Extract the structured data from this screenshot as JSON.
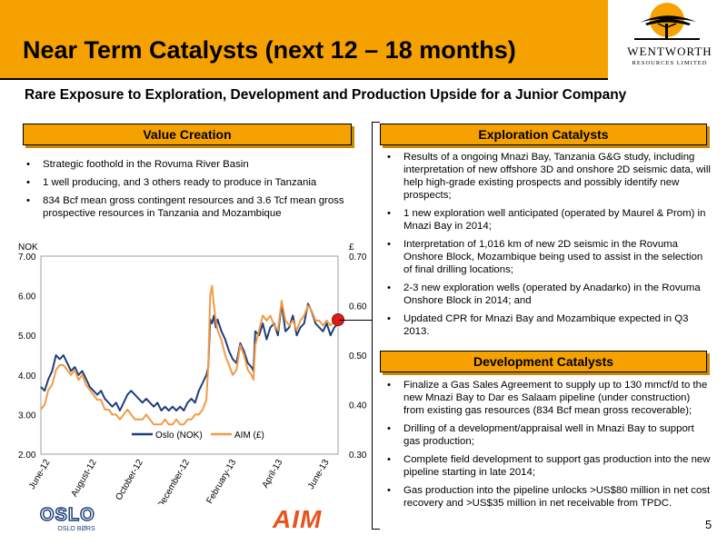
{
  "header": {
    "title": "Near Term Catalysts (next 12 – 18 months)",
    "logo_name": "WENTWORTH",
    "logo_sub": "RESOURCES LIMITED"
  },
  "subtitle": "Rare Exposure to Exploration, Development and Production Upside for a Junior Company",
  "value_creation": {
    "heading": "Value Creation",
    "items": [
      "Strategic foothold in the Rovuma River Basin",
      "1 well producing, and 3 others ready to produce in Tanzania",
      "834 Bcf mean gross contingent resources and 3.6 Tcf mean gross prospective resources in Tanzania and Mozambique"
    ]
  },
  "exploration": {
    "heading": "Exploration Catalysts",
    "items": [
      "Results of a ongoing Mnazi Bay, Tanzania G&G study, including interpretation of new offshore 3D and onshore 2D seismic data, will help high-grade existing prospects and possibly identify new prospects;",
      "1 new exploration well anticipated (operated by Maurel & Prom) in Mnazi Bay in 2014;",
      "Interpretation of 1,016 km of new 2D seismic in the Rovuma Onshore Block, Mozambique being used to assist in the selection of final drilling locations;",
      "2-3 new exploration wells (operated by Anadarko) in the Rovuma Onshore Block in 2014; and",
      "Updated CPR for Mnazi Bay and Mozambique expected in Q3 2013."
    ]
  },
  "development": {
    "heading": "Development Catalysts",
    "items": [
      "Finalize a Gas Sales Agreement to supply up to 130 mmcf/d to the new Mnazi Bay to Dar es Salaam pipeline (under construction) from existing gas resources (834 Bcf mean gross recoverable);",
      "Drilling of a development/appraisal well in Mnazi Bay to support gas production;",
      "Complete field development to support gas production into the new pipeline starting in late 2014;",
      "Gas production into the pipeline unlocks >US$80 million in net cost recovery and >US$35 million in net receivable from TPDC."
    ]
  },
  "page_number": "5",
  "logos": {
    "oslo": "OSLO",
    "oslo_sub": "OSLO BØRS",
    "aim": "AIM"
  },
  "chart_data": {
    "type": "line",
    "left_unit": "NOK",
    "right_unit": "£",
    "left_ticks": [
      "7.00",
      "6.00",
      "5.00",
      "4.00",
      "3.00",
      "2.00"
    ],
    "left_ylim": [
      2.0,
      7.0
    ],
    "right_ticks": [
      "0.70",
      "0.60",
      "0.50",
      "0.40",
      "0.30"
    ],
    "right_ylim": [
      0.3,
      0.7
    ],
    "x_ticks": [
      "June-12",
      "August-12",
      "October-12",
      "December-12",
      "February-13",
      "April-13",
      "June-13"
    ],
    "grid": false,
    "legend_position": "bottom-center",
    "colors": {
      "oslo": "#1f3f7a",
      "aim": "#f39a45",
      "marker": "#e01b1b"
    },
    "series": [
      {
        "name": "Oslo (NOK)",
        "axis": "left",
        "points": [
          [
            0,
            3.7
          ],
          [
            2,
            3.6
          ],
          [
            4,
            3.9
          ],
          [
            6,
            4.1
          ],
          [
            8,
            4.5
          ],
          [
            10,
            4.4
          ],
          [
            12,
            4.5
          ],
          [
            14,
            4.3
          ],
          [
            16,
            4.1
          ],
          [
            18,
            4.2
          ],
          [
            20,
            4.0
          ],
          [
            22,
            4.1
          ],
          [
            24,
            3.9
          ],
          [
            26,
            3.7
          ],
          [
            28,
            3.6
          ],
          [
            30,
            3.5
          ],
          [
            32,
            3.6
          ],
          [
            34,
            3.4
          ],
          [
            36,
            3.3
          ],
          [
            38,
            3.2
          ],
          [
            40,
            3.3
          ],
          [
            42,
            3.1
          ],
          [
            44,
            3.3
          ],
          [
            46,
            3.5
          ],
          [
            48,
            3.6
          ],
          [
            50,
            3.5
          ],
          [
            52,
            3.4
          ],
          [
            54,
            3.3
          ],
          [
            56,
            3.4
          ],
          [
            58,
            3.3
          ],
          [
            60,
            3.2
          ],
          [
            62,
            3.3
          ],
          [
            64,
            3.1
          ],
          [
            66,
            3.2
          ],
          [
            68,
            3.1
          ],
          [
            70,
            3.2
          ],
          [
            72,
            3.1
          ],
          [
            74,
            3.2
          ],
          [
            76,
            3.1
          ],
          [
            78,
            3.3
          ],
          [
            80,
            3.4
          ],
          [
            82,
            3.3
          ],
          [
            84,
            3.6
          ],
          [
            86,
            3.8
          ],
          [
            88,
            4.0
          ],
          [
            89,
            4.2
          ],
          [
            90,
            5.4
          ],
          [
            91,
            5.3
          ],
          [
            92,
            5.5
          ],
          [
            93,
            5.2
          ],
          [
            94,
            5.4
          ],
          [
            96,
            5.1
          ],
          [
            98,
            4.9
          ],
          [
            100,
            4.6
          ],
          [
            102,
            4.4
          ],
          [
            104,
            4.3
          ],
          [
            106,
            4.8
          ],
          [
            108,
            4.6
          ],
          [
            110,
            4.3
          ],
          [
            112,
            4.2
          ],
          [
            113,
            4.1
          ],
          [
            114,
            5.1
          ],
          [
            116,
            5.0
          ],
          [
            118,
            5.3
          ],
          [
            120,
            4.9
          ],
          [
            122,
            5.2
          ],
          [
            124,
            5.3
          ],
          [
            126,
            5.0
          ],
          [
            128,
            5.8
          ],
          [
            130,
            5.1
          ],
          [
            132,
            5.2
          ],
          [
            134,
            5.5
          ],
          [
            136,
            5.0
          ],
          [
            138,
            5.2
          ],
          [
            140,
            5.3
          ],
          [
            142,
            5.8
          ],
          [
            144,
            5.6
          ],
          [
            146,
            5.3
          ],
          [
            148,
            5.2
          ],
          [
            150,
            5.1
          ],
          [
            152,
            5.3
          ],
          [
            154,
            5.0
          ],
          [
            156,
            5.2
          ],
          [
            158,
            5.3
          ]
        ]
      },
      {
        "name": "AIM (£)",
        "axis": "right",
        "points": [
          [
            0,
            0.39
          ],
          [
            2,
            0.4
          ],
          [
            4,
            0.43
          ],
          [
            6,
            0.44
          ],
          [
            8,
            0.47
          ],
          [
            10,
            0.48
          ],
          [
            12,
            0.48
          ],
          [
            14,
            0.47
          ],
          [
            16,
            0.46
          ],
          [
            18,
            0.47
          ],
          [
            20,
            0.45
          ],
          [
            22,
            0.46
          ],
          [
            24,
            0.44
          ],
          [
            26,
            0.43
          ],
          [
            28,
            0.42
          ],
          [
            30,
            0.41
          ],
          [
            32,
            0.41
          ],
          [
            34,
            0.39
          ],
          [
            36,
            0.39
          ],
          [
            38,
            0.38
          ],
          [
            40,
            0.38
          ],
          [
            42,
            0.37
          ],
          [
            44,
            0.38
          ],
          [
            46,
            0.39
          ],
          [
            48,
            0.38
          ],
          [
            50,
            0.37
          ],
          [
            52,
            0.37
          ],
          [
            54,
            0.37
          ],
          [
            56,
            0.38
          ],
          [
            58,
            0.37
          ],
          [
            60,
            0.36
          ],
          [
            62,
            0.36
          ],
          [
            64,
            0.36
          ],
          [
            66,
            0.37
          ],
          [
            68,
            0.36
          ],
          [
            70,
            0.36
          ],
          [
            72,
            0.37
          ],
          [
            74,
            0.36
          ],
          [
            76,
            0.36
          ],
          [
            78,
            0.37
          ],
          [
            80,
            0.37
          ],
          [
            82,
            0.38
          ],
          [
            84,
            0.38
          ],
          [
            86,
            0.39
          ],
          [
            88,
            0.41
          ],
          [
            89,
            0.48
          ],
          [
            90,
            0.62
          ],
          [
            91,
            0.64
          ],
          [
            92,
            0.6
          ],
          [
            93,
            0.57
          ],
          [
            94,
            0.55
          ],
          [
            96,
            0.53
          ],
          [
            98,
            0.5
          ],
          [
            100,
            0.48
          ],
          [
            102,
            0.46
          ],
          [
            104,
            0.47
          ],
          [
            106,
            0.52
          ],
          [
            108,
            0.5
          ],
          [
            110,
            0.47
          ],
          [
            112,
            0.46
          ],
          [
            113,
            0.45
          ],
          [
            114,
            0.52
          ],
          [
            116,
            0.55
          ],
          [
            118,
            0.58
          ],
          [
            120,
            0.57
          ],
          [
            122,
            0.58
          ],
          [
            124,
            0.56
          ],
          [
            126,
            0.55
          ],
          [
            128,
            0.61
          ],
          [
            130,
            0.57
          ],
          [
            132,
            0.56
          ],
          [
            134,
            0.57
          ],
          [
            136,
            0.55
          ],
          [
            138,
            0.57
          ],
          [
            140,
            0.58
          ],
          [
            142,
            0.6
          ],
          [
            144,
            0.59
          ],
          [
            146,
            0.57
          ],
          [
            148,
            0.57
          ],
          [
            150,
            0.56
          ],
          [
            152,
            0.57
          ],
          [
            154,
            0.56
          ],
          [
            156,
            0.57
          ],
          [
            158,
            0.57
          ]
        ]
      }
    ]
  }
}
